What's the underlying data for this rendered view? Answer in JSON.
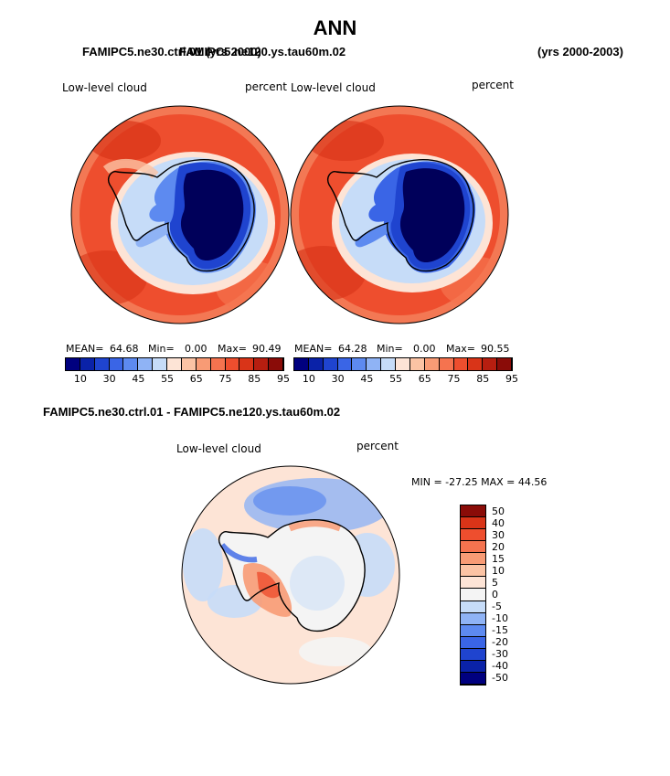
{
  "title": "ANN",
  "header_left_a": "FAMIPC5.ne30.ctrl.01 (yrs 2000)",
  "header_left_b": "FAMIPC5.ne120.ys.tau60m.02",
  "header_right": "(yrs 2000-2003)",
  "diff_title": "FAMIPC5.ne30.ctrl.01 - FAMIPC5.ne120.ys.tau60m.02",
  "colors": {
    "abs_scale": [
      "#00007f",
      "#0a22a8",
      "#1f44cf",
      "#3a65e6",
      "#5d8af0",
      "#8fb3f5",
      "#c6dcf8",
      "#fde4d6",
      "#fbc3a4",
      "#f89b75",
      "#f5734f",
      "#ee4e2e",
      "#d93418",
      "#b71e10",
      "#8a0c08"
    ],
    "diff_scale": [
      "#00007f",
      "#0a22a8",
      "#1f44cf",
      "#3a65e6",
      "#5d8af0",
      "#8fb3f5",
      "#c6dcf8",
      "#f4f4f4",
      "#fde4d6",
      "#fbc3a4",
      "#f89b75",
      "#f5734f",
      "#ee4e2e",
      "#d93418",
      "#8a0c08"
    ],
    "continent": "#00005a",
    "coast": "#000000"
  },
  "chart_data": [
    {
      "type": "heatmap",
      "title": "Low-level cloud",
      "units": "percent",
      "projection": "south polar stereographic",
      "stats": {
        "mean_label": "MEAN=",
        "mean": "64.68",
        "min_label": "Min=",
        "min": "0.00",
        "max_label": "Max=",
        "max": "90.49"
      },
      "colorbar_ticks": [
        "10",
        "30",
        "45",
        "55",
        "65",
        "75",
        "85",
        "95"
      ]
    },
    {
      "type": "heatmap",
      "title": "Low-level cloud",
      "units": "percent",
      "projection": "south polar stereographic",
      "stats": {
        "mean_label": "MEAN=",
        "mean": "64.28",
        "min_label": "Min=",
        "min": "0.00",
        "max_label": "Max=",
        "max": "90.55"
      },
      "colorbar_ticks": [
        "10",
        "30",
        "45",
        "55",
        "65",
        "75",
        "85",
        "95"
      ]
    },
    {
      "type": "heatmap",
      "title": "Low-level cloud",
      "units": "percent",
      "projection": "south polar stereographic",
      "minmax_text": "MIN = -27.25 MAX =  44.56",
      "colorbar_ticks": [
        "50",
        "40",
        "30",
        "20",
        "15",
        "10",
        "5",
        "0",
        "-5",
        "-10",
        "-15",
        "-20",
        "-30",
        "-40",
        "-50"
      ]
    }
  ]
}
